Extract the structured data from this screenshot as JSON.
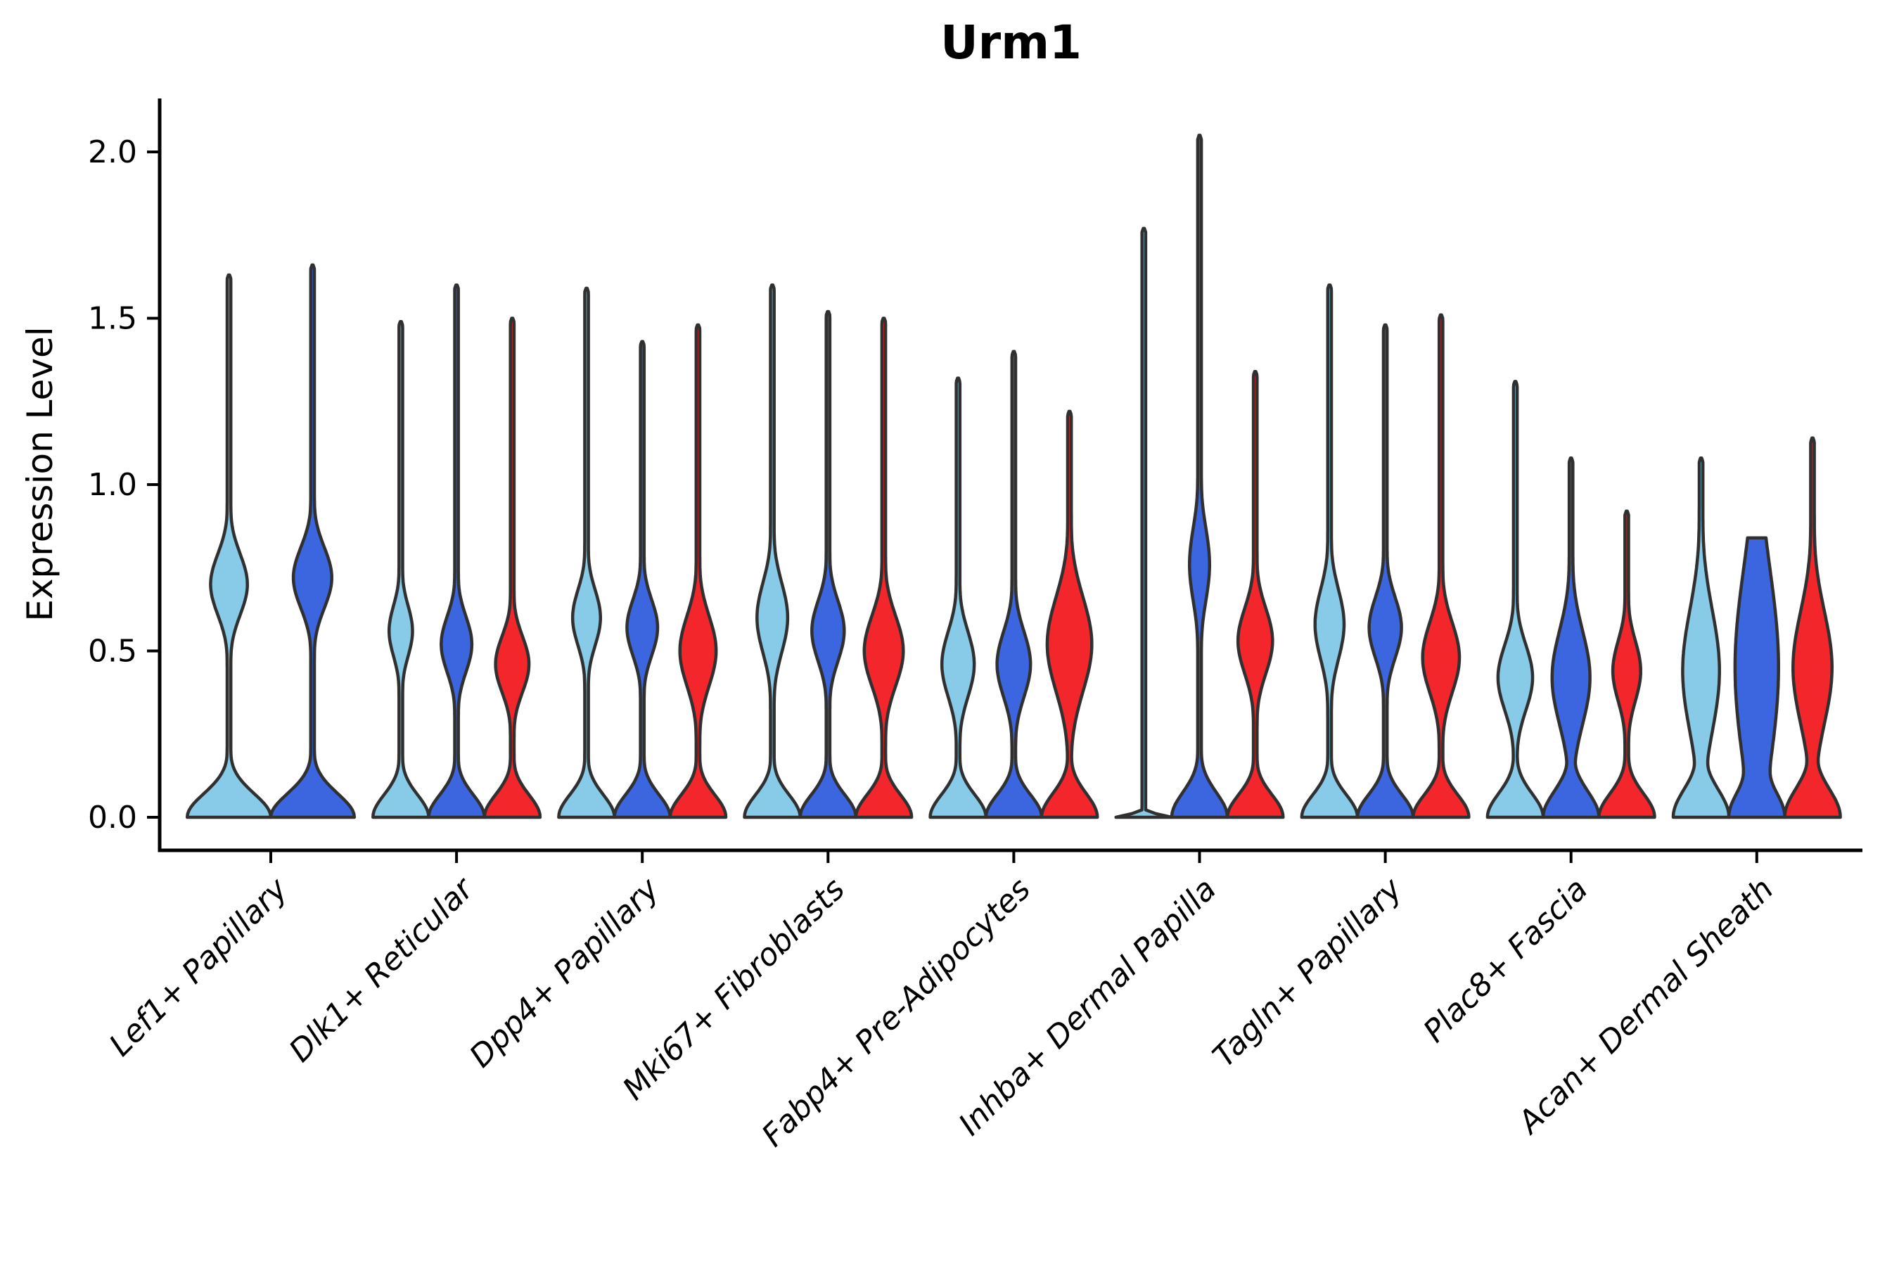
{
  "title": "Urm1",
  "y_axis_label": "Expression Level",
  "palette": {
    "light_blue": "#87CBE8",
    "royal_blue": "#3B66E0",
    "red": "#F2262B",
    "violin_outline": "#303030",
    "axis_color": "#000000"
  },
  "chart_data": {
    "type": "violin",
    "title": "Urm1",
    "xlabel": "",
    "ylabel": "Expression Level",
    "ylim": [
      -0.08,
      2.16
    ],
    "grid": false,
    "legend": "none",
    "yticks": [
      {
        "value": 0.0,
        "label": "0.0"
      },
      {
        "value": 0.5,
        "label": "0.5"
      },
      {
        "value": 1.0,
        "label": "1.0"
      },
      {
        "value": 1.5,
        "label": "1.5"
      },
      {
        "value": 2.0,
        "label": "2.0"
      }
    ],
    "categories": [
      "Lef1+ Papillary",
      "Dlk1+ Reticular",
      "Dpp4+ Papillary",
      "Mki67+ Fibroblasts",
      "Fabp4+ Pre-Adipocytes",
      "Inhba+ Dermal Papilla",
      "Tagln+ Papillary",
      "Plac8+ Fascia",
      "Acan+ Dermal Sheath"
    ],
    "series_colors": [
      "light_blue",
      "royal_blue",
      "red"
    ],
    "groups": [
      {
        "category": "Lef1+ Papillary",
        "violins": [
          {
            "color": "light_blue",
            "max": 1.63,
            "bulge_center": 0.7,
            "bulge_sigma": 0.13,
            "bulge_rel_width": 0.44,
            "base_sigma": 0.1
          },
          {
            "color": "royal_blue",
            "max": 1.66,
            "bulge_center": 0.72,
            "bulge_sigma": 0.13,
            "bulge_rel_width": 0.46,
            "base_sigma": 0.1
          }
        ]
      },
      {
        "category": "Dlk1+ Reticular",
        "violins": [
          {
            "color": "light_blue",
            "max": 1.49,
            "bulge_center": 0.56,
            "bulge_sigma": 0.11,
            "bulge_rel_width": 0.42,
            "base_sigma": 0.095
          },
          {
            "color": "royal_blue",
            "max": 1.6,
            "bulge_center": 0.52,
            "bulge_sigma": 0.12,
            "bulge_rel_width": 0.55,
            "base_sigma": 0.095
          },
          {
            "color": "red",
            "max": 1.5,
            "bulge_center": 0.46,
            "bulge_sigma": 0.12,
            "bulge_rel_width": 0.6,
            "base_sigma": 0.095
          }
        ]
      },
      {
        "category": "Dpp4+ Papillary",
        "violins": [
          {
            "color": "light_blue",
            "max": 1.59,
            "bulge_center": 0.6,
            "bulge_sigma": 0.12,
            "bulge_rel_width": 0.5,
            "base_sigma": 0.095
          },
          {
            "color": "royal_blue",
            "max": 1.43,
            "bulge_center": 0.57,
            "bulge_sigma": 0.12,
            "bulge_rel_width": 0.55,
            "base_sigma": 0.095
          },
          {
            "color": "red",
            "max": 1.48,
            "bulge_center": 0.5,
            "bulge_sigma": 0.15,
            "bulge_rel_width": 0.65,
            "base_sigma": 0.095
          }
        ]
      },
      {
        "category": "Mki67+ Fibroblasts",
        "violins": [
          {
            "color": "light_blue",
            "max": 1.6,
            "bulge_center": 0.6,
            "bulge_sigma": 0.15,
            "bulge_rel_width": 0.55,
            "base_sigma": 0.095
          },
          {
            "color": "royal_blue",
            "max": 1.52,
            "bulge_center": 0.56,
            "bulge_sigma": 0.13,
            "bulge_rel_width": 0.58,
            "base_sigma": 0.095
          },
          {
            "color": "red",
            "max": 1.5,
            "bulge_center": 0.5,
            "bulge_sigma": 0.15,
            "bulge_rel_width": 0.7,
            "base_sigma": 0.095
          }
        ]
      },
      {
        "category": "Fabp4+ Pre-Adipocytes",
        "violins": [
          {
            "color": "light_blue",
            "max": 1.32,
            "bulge_center": 0.46,
            "bulge_sigma": 0.14,
            "bulge_rel_width": 0.58,
            "base_sigma": 0.095
          },
          {
            "color": "royal_blue",
            "max": 1.4,
            "bulge_center": 0.46,
            "bulge_sigma": 0.14,
            "bulge_rel_width": 0.6,
            "base_sigma": 0.095
          },
          {
            "color": "red",
            "max": 1.22,
            "bulge_center": 0.52,
            "bulge_sigma": 0.2,
            "bulge_rel_width": 0.8,
            "base_sigma": 0.1
          }
        ]
      },
      {
        "category": "Inhba+ Dermal Papilla",
        "violins": [
          {
            "color": "light_blue",
            "max": 1.77,
            "bulge_center": 0.0,
            "bulge_sigma": 0.1,
            "bulge_rel_width": 0.0,
            "base_sigma": 0.012,
            "flat_base_line": true
          },
          {
            "color": "royal_blue",
            "max": 2.05,
            "bulge_center": 0.76,
            "bulge_sigma": 0.16,
            "bulge_rel_width": 0.36,
            "base_sigma": 0.105
          },
          {
            "color": "red",
            "max": 1.34,
            "bulge_center": 0.53,
            "bulge_sigma": 0.14,
            "bulge_rel_width": 0.62,
            "base_sigma": 0.095
          }
        ]
      },
      {
        "category": "Tagln+ Papillary",
        "violins": [
          {
            "color": "light_blue",
            "max": 1.6,
            "bulge_center": 0.58,
            "bulge_sigma": 0.15,
            "bulge_rel_width": 0.52,
            "base_sigma": 0.095
          },
          {
            "color": "royal_blue",
            "max": 1.48,
            "bulge_center": 0.57,
            "bulge_sigma": 0.13,
            "bulge_rel_width": 0.58,
            "base_sigma": 0.095
          },
          {
            "color": "red",
            "max": 1.51,
            "bulge_center": 0.48,
            "bulge_sigma": 0.15,
            "bulge_rel_width": 0.66,
            "base_sigma": 0.095
          }
        ]
      },
      {
        "category": "Plac8+ Fascia",
        "violins": [
          {
            "color": "light_blue",
            "max": 1.31,
            "bulge_center": 0.42,
            "bulge_sigma": 0.14,
            "bulge_rel_width": 0.62,
            "base_sigma": 0.1
          },
          {
            "color": "royal_blue",
            "max": 1.08,
            "bulge_center": 0.42,
            "bulge_sigma": 0.2,
            "bulge_rel_width": 0.68,
            "base_sigma": 0.11
          },
          {
            "color": "red",
            "max": 0.92,
            "bulge_center": 0.44,
            "bulge_sigma": 0.13,
            "bulge_rel_width": 0.5,
            "base_sigma": 0.1
          }
        ]
      },
      {
        "category": "Acan+ Dermal Sheath",
        "violins": [
          {
            "color": "light_blue",
            "max": 1.08,
            "bulge_center": 0.44,
            "bulge_sigma": 0.26,
            "bulge_rel_width": 0.66,
            "base_sigma": 0.12
          },
          {
            "color": "royal_blue",
            "max": 0.84,
            "bulge_center": 0.45,
            "bulge_sigma": 0.42,
            "bulge_rel_width": 0.78,
            "base_sigma": 0.12,
            "flat_top": true
          },
          {
            "color": "red",
            "max": 1.14,
            "bulge_center": 0.45,
            "bulge_sigma": 0.24,
            "bulge_rel_width": 0.7,
            "base_sigma": 0.12
          }
        ]
      }
    ]
  }
}
